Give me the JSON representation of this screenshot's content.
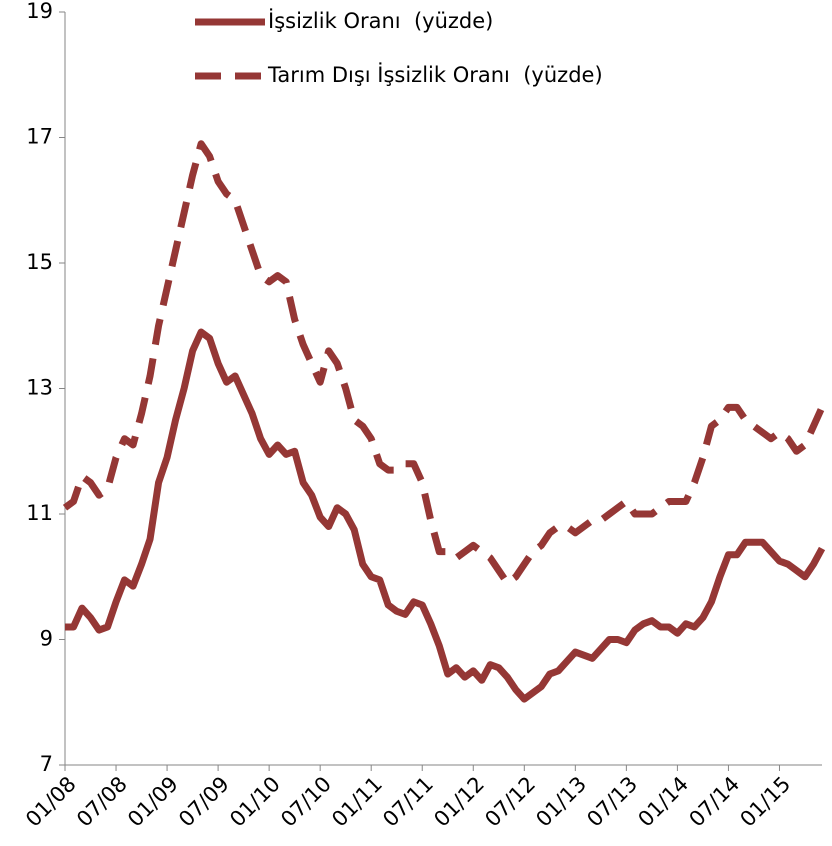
{
  "chart_data": {
    "type": "line",
    "categories": [
      "01/08",
      null,
      null,
      null,
      null,
      null,
      "07/08",
      null,
      null,
      null,
      null,
      null,
      "01/09",
      null,
      null,
      null,
      null,
      null,
      "07/09",
      null,
      null,
      null,
      null,
      null,
      "01/10",
      null,
      null,
      null,
      null,
      null,
      "07/10",
      null,
      null,
      null,
      null,
      null,
      "01/11",
      null,
      null,
      null,
      null,
      null,
      "07/11",
      null,
      null,
      null,
      null,
      null,
      "01/12",
      null,
      null,
      null,
      null,
      null,
      "07/12",
      null,
      null,
      null,
      null,
      null,
      "01/13",
      null,
      null,
      null,
      null,
      null,
      "07/13",
      null,
      null,
      null,
      null,
      null,
      "01/14",
      null,
      null,
      null,
      null,
      null,
      "07/14",
      null,
      null,
      null,
      null,
      null,
      "01/15",
      null,
      null,
      null,
      null,
      null
    ],
    "series": [
      {
        "name": "İşsizlik Oranı  (yüzde)",
        "color": "#953735",
        "dash": false,
        "values": [
          9.2,
          9.2,
          9.5,
          9.35,
          9.15,
          9.2,
          9.6,
          9.95,
          9.85,
          10.2,
          10.6,
          11.5,
          11.9,
          12.5,
          13.0,
          13.6,
          13.9,
          13.8,
          13.4,
          13.1,
          13.2,
          12.9,
          12.6,
          12.2,
          11.95,
          12.1,
          11.95,
          12.0,
          11.5,
          11.3,
          10.95,
          10.8,
          11.1,
          11.0,
          10.75,
          10.2,
          10.0,
          9.95,
          9.55,
          9.45,
          9.4,
          9.6,
          9.55,
          9.25,
          8.9,
          8.45,
          8.55,
          8.4,
          8.5,
          8.35,
          8.6,
          8.55,
          8.4,
          8.2,
          8.05,
          8.15,
          8.25,
          8.45,
          8.5,
          8.65,
          8.8,
          8.75,
          8.7,
          8.85,
          9.0,
          9.0,
          8.95,
          9.15,
          9.25,
          9.3,
          9.2,
          9.2,
          9.1,
          9.25,
          9.2,
          9.35,
          9.6,
          10.0,
          10.35,
          10.35,
          10.55,
          10.55,
          10.55,
          10.4,
          10.25,
          10.2,
          10.1,
          10.0,
          10.2,
          10.45
        ]
      },
      {
        "name": "Tarım Dışı İşsizlik Oranı  (yüzde)",
        "color": "#953735",
        "dash": true,
        "values": [
          11.1,
          11.2,
          11.6,
          11.5,
          11.3,
          11.4,
          11.9,
          12.2,
          12.1,
          12.6,
          13.2,
          14.0,
          14.6,
          15.2,
          15.8,
          16.4,
          16.9,
          16.7,
          16.3,
          16.1,
          16.0,
          15.6,
          15.2,
          14.8,
          14.7,
          14.8,
          14.7,
          14.1,
          13.7,
          13.4,
          13.1,
          13.6,
          13.4,
          13.0,
          12.5,
          12.4,
          12.2,
          11.8,
          11.7,
          11.7,
          11.8,
          11.8,
          11.5,
          10.9,
          10.4,
          10.4,
          10.3,
          10.4,
          10.5,
          10.4,
          10.3,
          10.1,
          9.9,
          10.0,
          10.2,
          10.4,
          10.5,
          10.7,
          10.8,
          10.8,
          10.7,
          10.8,
          10.9,
          10.9,
          11.0,
          11.1,
          11.2,
          11.0,
          11.0,
          11.0,
          11.1,
          11.2,
          11.2,
          11.2,
          11.5,
          11.9,
          12.4,
          12.5,
          12.7,
          12.7,
          12.5,
          12.4,
          12.3,
          12.2,
          12.3,
          12.2,
          12.0,
          12.1,
          12.4,
          12.7
        ]
      }
    ],
    "ylim": [
      7,
      19
    ],
    "yticks": [
      7,
      9,
      11,
      13,
      15,
      17,
      19
    ]
  }
}
